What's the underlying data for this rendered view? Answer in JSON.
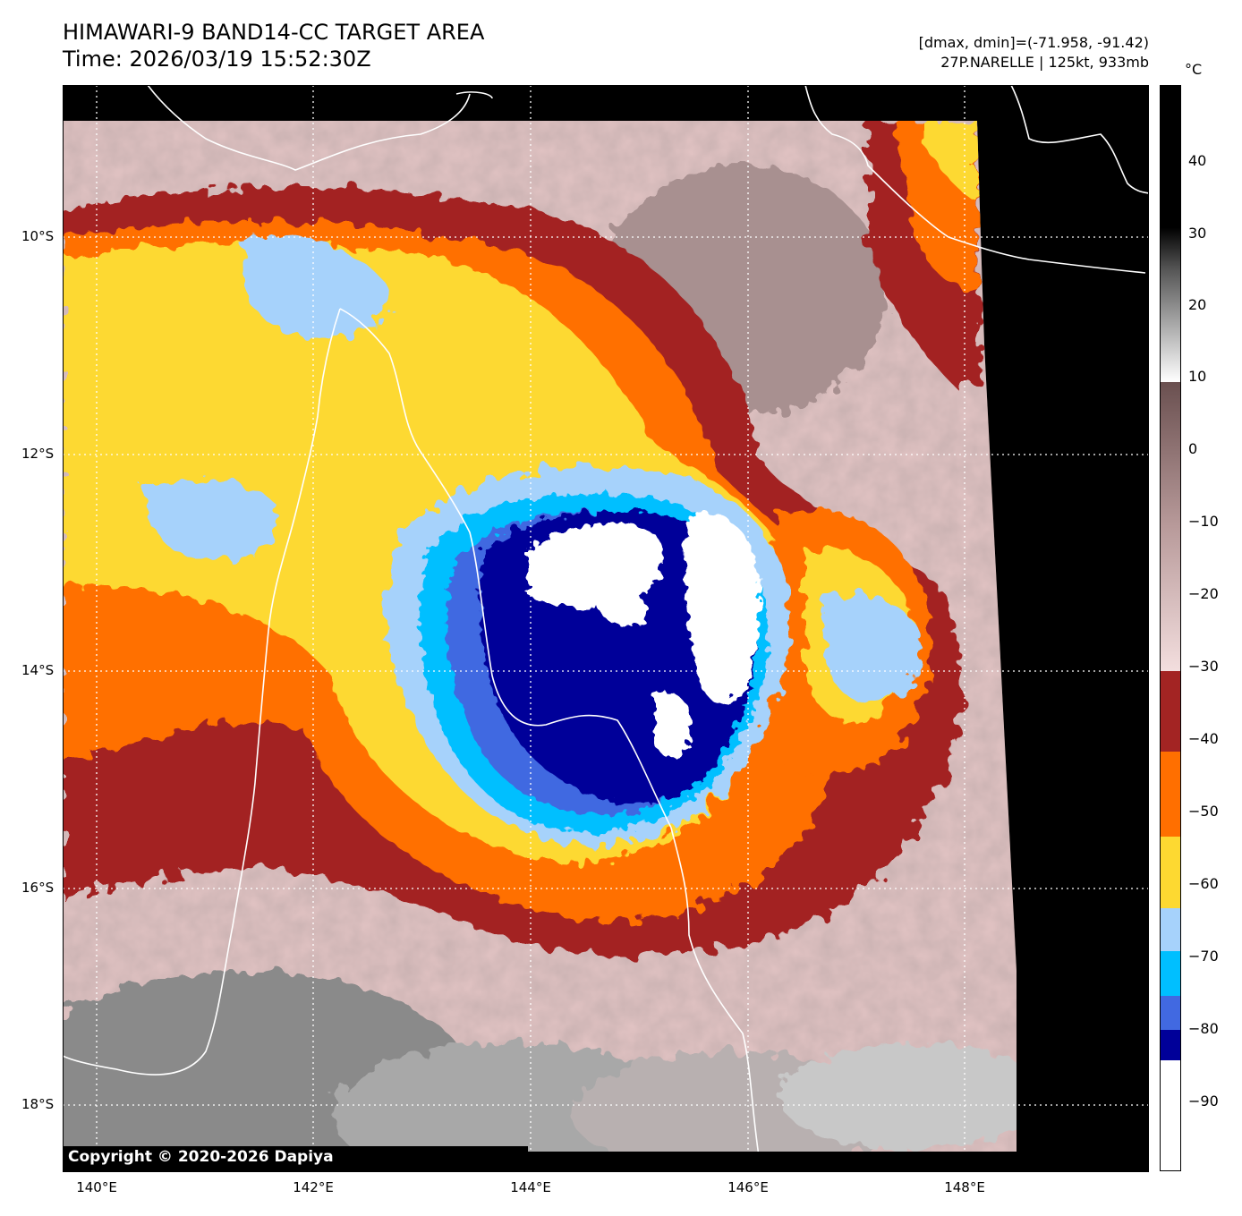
{
  "header": {
    "title": "HIMAWARI-9 BAND14-CC TARGET AREA",
    "time": "Time: 2026/03/19 15:52:30Z",
    "range": "[dmax, dmin]=(-71.958, -91.42)",
    "storm": "27P.NARELLE | 125kt, 933mb"
  },
  "axes": {
    "lat_labels": [
      "10°S",
      "12°S",
      "14°S",
      "16°S",
      "18°S"
    ],
    "lon_labels": [
      "140°E",
      "142°E",
      "144°E",
      "146°E",
      "148°E"
    ]
  },
  "colorbar": {
    "unit": "°C",
    "ticks": [
      "40",
      "30",
      "20",
      "10",
      "0",
      "−10",
      "−20",
      "−30",
      "−40",
      "−50",
      "−60",
      "−70",
      "−80",
      "−90"
    ],
    "bands": [
      {
        "from": -91,
        "to": -80,
        "color": "#000099"
      },
      {
        "from": -80,
        "to": -75,
        "color": "#4169e1"
      },
      {
        "from": -75,
        "to": -70,
        "color": "#00bfff"
      },
      {
        "from": -70,
        "to": -60,
        "color": "#a6d2fb"
      },
      {
        "from": -60,
        "to": -50,
        "color": "#fdd931"
      },
      {
        "from": -50,
        "to": -40,
        "color": "#ff6f00"
      },
      {
        "from": -40,
        "to": -30,
        "color": "#a32423"
      }
    ]
  },
  "copyright": "Copyright © 2020-2026 Dapiya"
}
